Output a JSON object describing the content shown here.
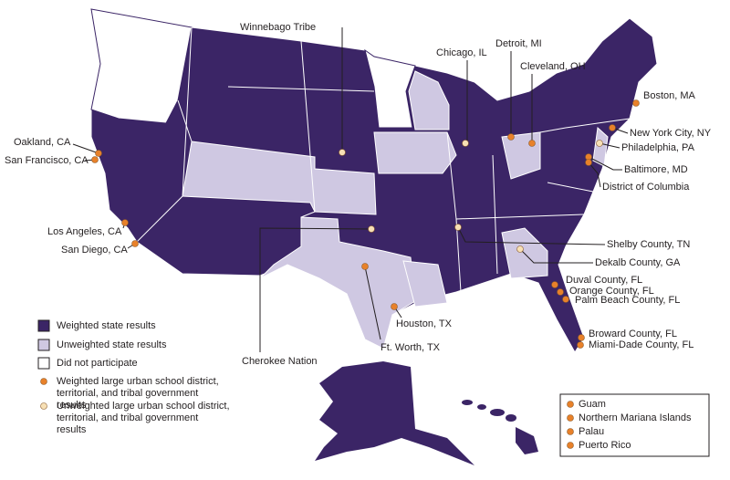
{
  "legend": {
    "items": [
      {
        "label": "Weighted state results",
        "color": "#3b2566"
      },
      {
        "label": "Unweighted state results",
        "color": "#cfc8e2"
      },
      {
        "label": "Did not participate",
        "color": "#ffffff"
      },
      {
        "label": "Weighted large urban school district, territorial, and tribal government results",
        "color": "#e8812a"
      },
      {
        "label": "Unweighted large urban school district, territorial, and tribal government results",
        "color": "#f7e0b5"
      }
    ]
  },
  "places": [
    {
      "label": "Winnebago Tribe",
      "color": "#f7e0b5"
    },
    {
      "label": "Chicago, IL",
      "color": "#f7e0b5"
    },
    {
      "label": "Detroit, MI",
      "color": "#e8812a"
    },
    {
      "label": "Cleveland, OH",
      "color": "#e8812a"
    },
    {
      "label": "Boston, MA",
      "color": "#e8812a"
    },
    {
      "label": "New York City, NY",
      "color": "#e8812a"
    },
    {
      "label": "Philadelphia, PA",
      "color": "#f7e0b5"
    },
    {
      "label": "Baltimore, MD",
      "color": "#e8812a"
    },
    {
      "label": "District of Columbia",
      "color": "#e8812a"
    },
    {
      "label": "Oakland, CA",
      "color": "#e8812a"
    },
    {
      "label": "San Francisco, CA",
      "color": "#e8812a"
    },
    {
      "label": "Los Angeles, CA",
      "color": "#e8812a"
    },
    {
      "label": "San Diego, CA",
      "color": "#e8812a"
    },
    {
      "label": "Shelby County, TN",
      "color": "#f7e0b5"
    },
    {
      "label": "Dekalb County, GA",
      "color": "#f7e0b5"
    },
    {
      "label": "Duval County, FL",
      "color": "#e8812a"
    },
    {
      "label": "Orange County, FL",
      "color": "#e8812a"
    },
    {
      "label": "Palm Beach County, FL",
      "color": "#e8812a"
    },
    {
      "label": "Broward County, FL",
      "color": "#e8812a"
    },
    {
      "label": "Miami-Dade County, FL",
      "color": "#e8812a"
    },
    {
      "label": "Cherokee Nation",
      "color": "#f7e0b5"
    },
    {
      "label": "Houston, TX",
      "color": "#e8812a"
    },
    {
      "label": "Ft. Worth, TX",
      "color": "#e8812a"
    }
  ],
  "territories": {
    "color": "#e8812a",
    "items": [
      "Guam",
      "Northern Mariana Islands",
      "Palau",
      "Puerto Rico"
    ]
  }
}
